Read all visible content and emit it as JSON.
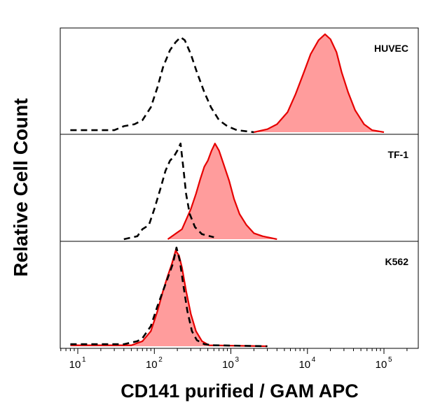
{
  "chart_data": {
    "type": "area",
    "ylabel": "Relative Cell Count",
    "xlabel": "CD141 purified / GAM APC",
    "xscale": "log",
    "xlim": [
      8,
      25000000
    ],
    "x_ticks": [
      {
        "value": 10,
        "base": "10",
        "exp": "1"
      },
      {
        "value": 100,
        "base": "10",
        "exp": "2"
      },
      {
        "value": 1000,
        "base": "10",
        "exp": "3"
      },
      {
        "value": 10000,
        "base": "10",
        "exp": "4"
      },
      {
        "value": 100000,
        "base": "10",
        "exp": "5"
      }
    ],
    "colors": {
      "sample_fill": "#ff9c9c",
      "sample_line": "#e60000",
      "control_line": "#000000"
    },
    "panels": [
      {
        "label": "HUVEC",
        "ylim": [
          0,
          1
        ],
        "series": [
          {
            "style": "control-dashed",
            "x": [
              8,
              30,
              40,
              55,
              70,
              90,
              110,
              130,
              160,
              190,
              220,
              250,
              300,
              360,
              450,
              550,
              700,
              900,
              1200,
              2000
            ],
            "y": [
              0.02,
              0.02,
              0.06,
              0.08,
              0.12,
              0.25,
              0.45,
              0.65,
              0.82,
              0.9,
              0.95,
              0.92,
              0.78,
              0.6,
              0.4,
              0.25,
              0.12,
              0.06,
              0.02,
              0.0
            ]
          },
          {
            "style": "sample-filled",
            "x": [
              2000,
              3000,
              4000,
              5500,
              7000,
              9000,
              11000,
              14000,
              17000,
              20000,
              24000,
              28000,
              34000,
              42000,
              55000,
              70000,
              100000
            ],
            "y": [
              0.0,
              0.03,
              0.08,
              0.2,
              0.38,
              0.6,
              0.78,
              0.92,
              0.98,
              0.93,
              0.8,
              0.6,
              0.4,
              0.22,
              0.08,
              0.02,
              0.0
            ]
          }
        ]
      },
      {
        "label": "TF-1",
        "ylim": [
          0,
          1
        ],
        "series": [
          {
            "style": "control-dashed",
            "x": [
              40,
              60,
              70,
              85,
              100,
              120,
              140,
              160,
              180,
              200,
              220,
              240,
              260,
              290,
              340,
              420,
              600
            ],
            "y": [
              0.0,
              0.03,
              0.1,
              0.14,
              0.3,
              0.5,
              0.68,
              0.78,
              0.82,
              0.88,
              0.95,
              0.7,
              0.45,
              0.25,
              0.12,
              0.05,
              0.02
            ]
          },
          {
            "style": "sample-filled",
            "x": [
              150,
              230,
              300,
              350,
              400,
              450,
              500,
              560,
              620,
              700,
              800,
              950,
              1100,
              1300,
              1600,
              2000,
              2600,
              4000
            ],
            "y": [
              0.0,
              0.1,
              0.3,
              0.45,
              0.6,
              0.72,
              0.78,
              0.88,
              0.95,
              0.88,
              0.75,
              0.58,
              0.4,
              0.25,
              0.14,
              0.06,
              0.03,
              0.0
            ]
          }
        ]
      },
      {
        "label": "K562",
        "ylim": [
          0,
          1
        ],
        "series": [
          {
            "style": "control-dashed",
            "x": [
              8,
              40,
              60,
              70,
              90,
              110,
              130,
              150,
              175,
              195,
              215,
              240,
              270,
              310,
              360,
              450,
              600,
              3000
            ],
            "y": [
              0.02,
              0.02,
              0.05,
              0.08,
              0.2,
              0.4,
              0.55,
              0.68,
              0.82,
              0.98,
              0.85,
              0.6,
              0.35,
              0.15,
              0.06,
              0.02,
              0.01,
              0.0
            ]
          },
          {
            "style": "sample-filled",
            "x": [
              8,
              50,
              70,
              90,
              110,
              130,
              150,
              170,
              190,
              210,
              230,
              260,
              300,
              350,
              420,
              520,
              3000
            ],
            "y": [
              0.01,
              0.01,
              0.05,
              0.15,
              0.35,
              0.55,
              0.7,
              0.82,
              0.95,
              0.9,
              0.78,
              0.55,
              0.32,
              0.15,
              0.05,
              0.01,
              0.0
            ]
          }
        ]
      }
    ]
  }
}
